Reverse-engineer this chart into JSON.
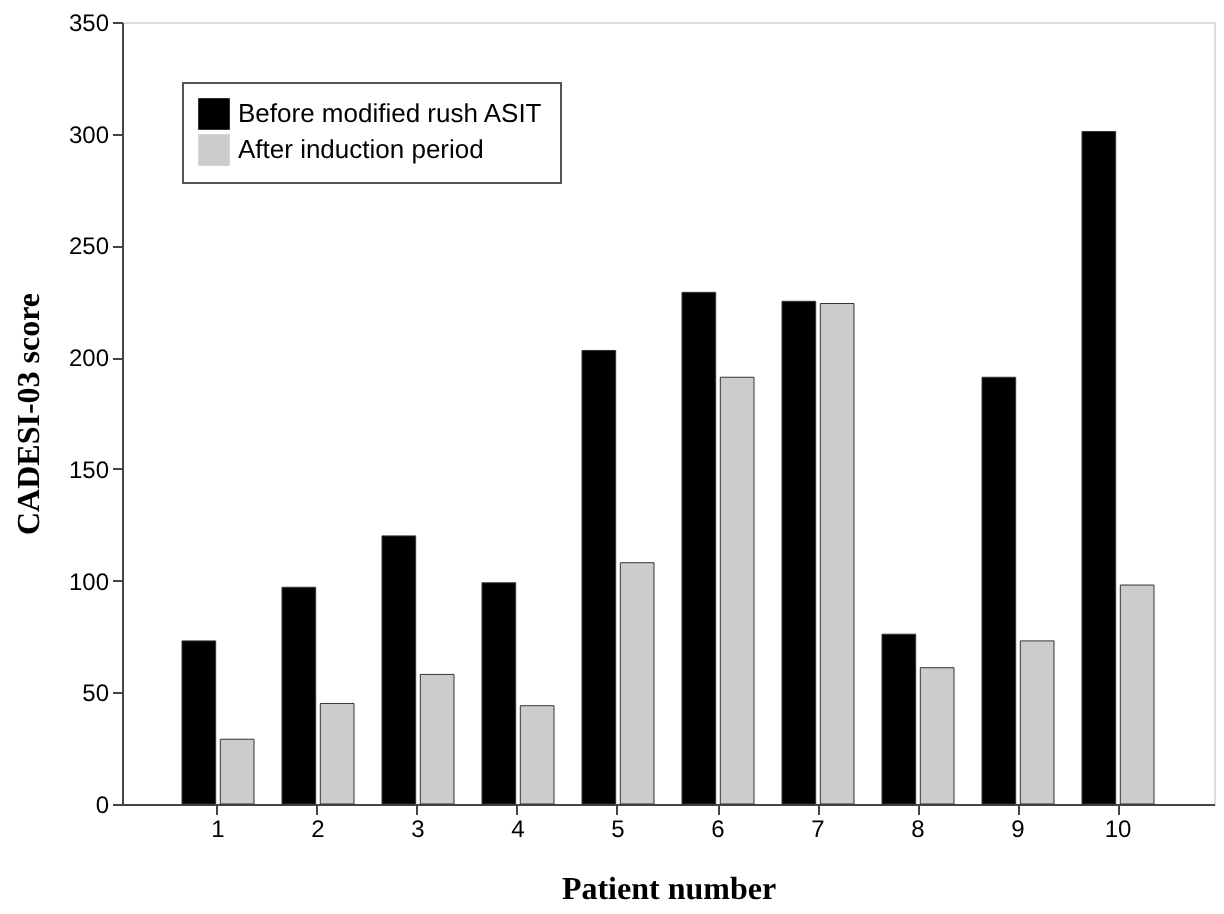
{
  "chart_data": {
    "type": "bar",
    "xlabel": "Patient number",
    "ylabel": "CADESI-03 score",
    "categories": [
      "1",
      "2",
      "3",
      "4",
      "5",
      "6",
      "7",
      "8",
      "9",
      "10"
    ],
    "series": [
      {
        "name": "Before modified rush ASIT",
        "color": "#000000",
        "values": [
          73,
          97,
          120,
          99,
          203,
          229,
          225,
          76,
          191,
          301
        ]
      },
      {
        "name": "After induction period",
        "color": "#cccccc",
        "values": [
          29,
          45,
          58,
          44,
          108,
          191,
          224,
          61,
          73,
          98
        ]
      }
    ],
    "ylim": [
      0,
      350
    ],
    "yticks": [
      0,
      50,
      100,
      150,
      200,
      250,
      300,
      350
    ],
    "grid": false,
    "legend": "top left"
  }
}
